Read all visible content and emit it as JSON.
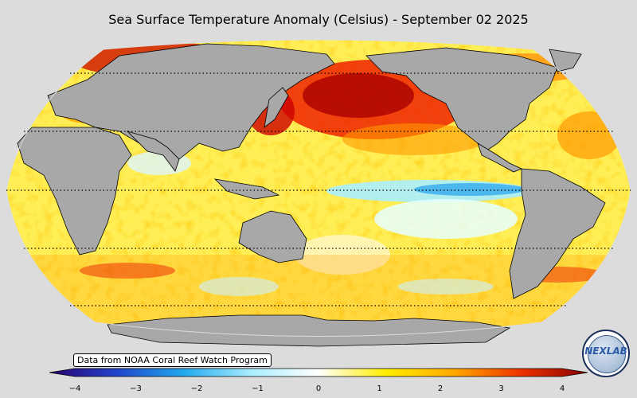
{
  "title": "Sea Surface Temperature Anomaly (Celsius) - September 02 2025",
  "source_note": "Data from NOAA Coral Reef Watch Program",
  "colorbar": {
    "min": -4,
    "max": 4,
    "ticks": [
      "−4",
      "−3",
      "−2",
      "−1",
      "0",
      "1",
      "2",
      "3",
      "4"
    ],
    "colors": [
      "#2a0070",
      "#2244cc",
      "#22aaee",
      "#aaeeff",
      "#ffffff",
      "#ffee00",
      "#ffaa00",
      "#ee3300",
      "#880000"
    ]
  },
  "map": {
    "projection": "Robinson",
    "center_longitude": "Pacific",
    "land_color": "#a8a8a8",
    "ocean_colors": [
      "#ffee33",
      "#ff9900",
      "#ee2200",
      "#aa0000",
      "#eeffff",
      "#66ddff",
      "#ffffff"
    ]
  },
  "logo": {
    "text": "NEXLAB"
  }
}
